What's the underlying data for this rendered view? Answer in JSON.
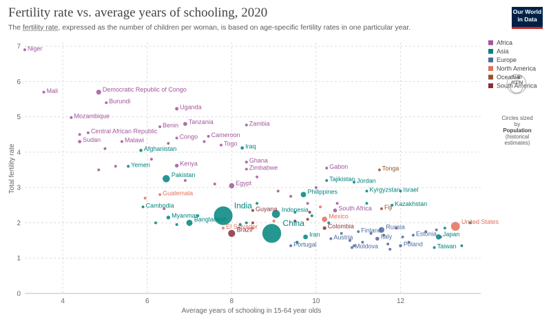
{
  "header": {
    "title": "Fertility rate vs. average years of schooling, 2020",
    "subtitle_link": "fertility rate",
    "subtitle_pre": "The ",
    "subtitle_post": ", expressed as the number of children per woman, is based on age-specific fertility rates in one particular year.",
    "logo_line1": "Our World",
    "logo_line2": "in Data"
  },
  "size_legend": {
    "top_value": "1.4B",
    "mid_value": "600M",
    "note": "Circles sized by",
    "measure": "Population",
    "measure_note": "(historical estimates)"
  },
  "chart_data": {
    "type": "scatter",
    "xlabel": "Average years of schooling in 15-64 year olds",
    "ylabel": "Total fertility rate",
    "xlim": [
      3.1,
      13.9
    ],
    "ylim": [
      0,
      7.1
    ],
    "xticks": [
      4,
      6,
      8,
      10,
      12
    ],
    "yticks": [
      0,
      1,
      2,
      3,
      4,
      5,
      6,
      7
    ],
    "grid": true,
    "legend_position": "right",
    "colors": {
      "Africa": "#a2559c",
      "Asia": "#00847e",
      "Europe": "#4c6a9c",
      "North America": "#e56e5a",
      "Oceania": "#9a5129",
      "South America": "#883039"
    },
    "legend": [
      "Africa",
      "Asia",
      "Europe",
      "North America",
      "Oceania",
      "South America"
    ],
    "points": [
      {
        "label": "Niger",
        "region": "Africa",
        "x": 3.1,
        "y": 6.9,
        "pop": 24
      },
      {
        "label": "Mali",
        "region": "Africa",
        "x": 3.55,
        "y": 5.7,
        "pop": 21
      },
      {
        "label": "Democratic Republic of Congo",
        "region": "Africa",
        "x": 4.85,
        "y": 5.7,
        "pop": 92
      },
      {
        "label": "Burundi",
        "region": "Africa",
        "x": 5.03,
        "y": 5.4,
        "pop": 12
      },
      {
        "label": "Mozambique",
        "region": "Africa",
        "x": 4.2,
        "y": 4.98,
        "pop": 31
      },
      {
        "label": "Uganda",
        "region": "Africa",
        "x": 6.7,
        "y": 5.23,
        "pop": 45
      },
      {
        "label": "Central African Republic",
        "region": "Africa",
        "x": 4.6,
        "y": 4.55,
        "pop": 5
      },
      {
        "label": "Benin",
        "region": "Africa",
        "x": 6.3,
        "y": 4.72,
        "pop": 12
      },
      {
        "label": "Tanzania",
        "region": "Africa",
        "x": 6.9,
        "y": 4.8,
        "pop": 61
      },
      {
        "label": "Zambia",
        "region": "Africa",
        "x": 8.35,
        "y": 4.77,
        "pop": 19
      },
      {
        "label": "Sudan",
        "region": "Africa",
        "x": 4.4,
        "y": 4.3,
        "pop": 44
      },
      {
        "label": "Malawi",
        "region": "Africa",
        "x": 5.4,
        "y": 4.3,
        "pop": 19
      },
      {
        "label": "Congo",
        "region": "Africa",
        "x": 6.7,
        "y": 4.4,
        "pop": 6
      },
      {
        "label": "Cameroon",
        "region": "Africa",
        "x": 7.45,
        "y": 4.45,
        "pop": 27
      },
      {
        "label": "Togo",
        "region": "Africa",
        "x": 7.75,
        "y": 4.2,
        "pop": 8
      },
      {
        "label": "Afghanistan",
        "region": "Asia",
        "x": 5.85,
        "y": 4.05,
        "pop": 39
      },
      {
        "label": "Iraq",
        "region": "Asia",
        "x": 8.25,
        "y": 4.12,
        "pop": 42
      },
      {
        "label": "Ghana",
        "region": "Africa",
        "x": 8.35,
        "y": 3.72,
        "pop": 32
      },
      {
        "label": "Kenya",
        "region": "Africa",
        "x": 6.7,
        "y": 3.62,
        "pop": 53
      },
      {
        "label": "Yemen",
        "region": "Asia",
        "x": 5.55,
        "y": 3.6,
        "pop": 32
      },
      {
        "label": "Zimbabwe",
        "region": "Africa",
        "x": 8.35,
        "y": 3.52,
        "pop": 15
      },
      {
        "label": "Gabon",
        "region": "Africa",
        "x": 10.25,
        "y": 3.55,
        "pop": 2
      },
      {
        "label": "Tonga",
        "region": "Oceania",
        "x": 11.5,
        "y": 3.5,
        "pop": 1
      },
      {
        "label": "Pakistan",
        "region": "Asia",
        "x": 6.45,
        "y": 3.25,
        "pop": 227
      },
      {
        "label": "Tajikistan",
        "region": "Asia",
        "x": 10.25,
        "y": 3.2,
        "pop": 9
      },
      {
        "label": "Jordan",
        "region": "Asia",
        "x": 10.9,
        "y": 3.15,
        "pop": 11
      },
      {
        "label": "Egypt",
        "region": "Africa",
        "x": 8.0,
        "y": 3.05,
        "pop": 107
      },
      {
        "label": "Philippines",
        "region": "Asia",
        "x": 9.7,
        "y": 2.8,
        "pop": 112
      },
      {
        "label": "Kyrgyzstan",
        "region": "Asia",
        "x": 11.2,
        "y": 2.9,
        "pop": 7
      },
      {
        "label": "Israel",
        "region": "Asia",
        "x": 12.0,
        "y": 2.9,
        "pop": 9
      },
      {
        "label": "Guatemala",
        "region": "North America",
        "x": 6.3,
        "y": 2.8,
        "pop": 17
      },
      {
        "label": "Kazakhstan",
        "region": "Asia",
        "x": 11.8,
        "y": 2.5,
        "pop": 19
      },
      {
        "label": "Cambodia",
        "region": "Asia",
        "x": 5.9,
        "y": 2.45,
        "pop": 17
      },
      {
        "label": "Fiji",
        "region": "Oceania",
        "x": 11.55,
        "y": 2.4,
        "pop": 1
      },
      {
        "label": "India",
        "region": "Asia",
        "x": 7.8,
        "y": 2.2,
        "pop": 1396
      },
      {
        "label": "Guyana",
        "region": "South America",
        "x": 8.5,
        "y": 2.35,
        "pop": 1
      },
      {
        "label": "Indonesia",
        "region": "Asia",
        "x": 9.05,
        "y": 2.25,
        "pop": 274
      },
      {
        "label": "South Africa",
        "region": "Africa",
        "x": 10.45,
        "y": 2.35,
        "pop": 59
      },
      {
        "label": "Myanmar",
        "region": "Asia",
        "x": 6.5,
        "y": 2.15,
        "pop": 54
      },
      {
        "label": "Mexico",
        "region": "North America",
        "x": 10.2,
        "y": 2.1,
        "pop": 126
      },
      {
        "label": "Bangladesh",
        "region": "Asia",
        "x": 7.0,
        "y": 2.0,
        "pop": 167
      },
      {
        "label": "United States",
        "region": "North America",
        "x": 13.3,
        "y": 1.9,
        "pop": 335
      },
      {
        "label": "El Salvador",
        "region": "North America",
        "x": 7.8,
        "y": 1.85,
        "pop": 6
      },
      {
        "label": "China",
        "region": "Asia",
        "x": 8.95,
        "y": 1.7,
        "pop": 1424
      },
      {
        "label": "Brazil",
        "region": "South America",
        "x": 8.0,
        "y": 1.7,
        "pop": 213
      },
      {
        "label": "Colombia",
        "region": "South America",
        "x": 10.2,
        "y": 1.85,
        "pop": 51
      },
      {
        "label": "Finland",
        "region": "Europe",
        "x": 11.0,
        "y": 1.75,
        "pop": 6
      },
      {
        "label": "Russia",
        "region": "Europe",
        "x": 11.55,
        "y": 1.8,
        "pop": 145
      },
      {
        "label": "Estonia",
        "region": "Europe",
        "x": 12.3,
        "y": 1.65,
        "pop": 1
      },
      {
        "label": "Iran",
        "region": "Asia",
        "x": 9.75,
        "y": 1.6,
        "pop": 87
      },
      {
        "label": "Austria",
        "region": "Europe",
        "x": 10.35,
        "y": 1.55,
        "pop": 9
      },
      {
        "label": "Italy",
        "region": "Europe",
        "x": 11.45,
        "y": 1.55,
        "pop": 59
      },
      {
        "label": "Japan",
        "region": "Asia",
        "x": 12.9,
        "y": 1.6,
        "pop": 125
      },
      {
        "label": "Portugal",
        "region": "Europe",
        "x": 9.4,
        "y": 1.35,
        "pop": 10
      },
      {
        "label": "Poland",
        "region": "Europe",
        "x": 12.0,
        "y": 1.35,
        "pop": 38
      },
      {
        "label": "Moldova",
        "region": "Europe",
        "x": 10.85,
        "y": 1.3,
        "pop": 3
      },
      {
        "label": "Taiwan",
        "region": "Asia",
        "x": 12.8,
        "y": 1.3,
        "pop": 24
      },
      {
        "label": "",
        "region": "Africa",
        "x": 4.4,
        "y": 4.5,
        "pop": 5
      },
      {
        "label": "",
        "region": "Africa",
        "x": 5.0,
        "y": 4.1,
        "pop": 6
      },
      {
        "label": "",
        "region": "Africa",
        "x": 4.85,
        "y": 3.5,
        "pop": 4
      },
      {
        "label": "",
        "region": "Africa",
        "x": 5.25,
        "y": 3.6,
        "pop": 4
      },
      {
        "label": "",
        "region": "Africa",
        "x": 6.1,
        "y": 3.8,
        "pop": 4
      },
      {
        "label": "",
        "region": "Africa",
        "x": 6.5,
        "y": 4.25,
        "pop": 4
      },
      {
        "label": "",
        "region": "Africa",
        "x": 7.35,
        "y": 4.3,
        "pop": 3
      },
      {
        "label": "",
        "region": "Africa",
        "x": 8.6,
        "y": 3.3,
        "pop": 3
      },
      {
        "label": "",
        "region": "Africa",
        "x": 7.6,
        "y": 3.1,
        "pop": 3
      },
      {
        "label": "",
        "region": "Africa",
        "x": 6.9,
        "y": 3.2,
        "pop": 3
      },
      {
        "label": "",
        "region": "Africa",
        "x": 6.4,
        "y": 2.4,
        "pop": 3
      },
      {
        "label": "",
        "region": "Africa",
        "x": 9.1,
        "y": 2.9,
        "pop": 3
      },
      {
        "label": "",
        "region": "Africa",
        "x": 9.4,
        "y": 2.75,
        "pop": 3
      },
      {
        "label": "",
        "region": "Africa",
        "x": 9.8,
        "y": 2.55,
        "pop": 2
      },
      {
        "label": "",
        "region": "Africa",
        "x": 10.5,
        "y": 2.55,
        "pop": 2
      },
      {
        "label": "",
        "region": "Africa",
        "x": 10.0,
        "y": 3.0,
        "pop": 2
      },
      {
        "label": "",
        "region": "Asia",
        "x": 6.2,
        "y": 2.0,
        "pop": 3
      },
      {
        "label": "",
        "region": "Asia",
        "x": 6.7,
        "y": 1.95,
        "pop": 3
      },
      {
        "label": "",
        "region": "Asia",
        "x": 7.2,
        "y": 2.2,
        "pop": 3
      },
      {
        "label": "",
        "region": "Asia",
        "x": 8.2,
        "y": 1.95,
        "pop": 8
      },
      {
        "label": "",
        "region": "Asia",
        "x": 8.35,
        "y": 2.0,
        "pop": 20
      },
      {
        "label": "",
        "region": "Asia",
        "x": 8.6,
        "y": 2.55,
        "pop": 4
      },
      {
        "label": "",
        "region": "Asia",
        "x": 9.5,
        "y": 2.3,
        "pop": 5
      },
      {
        "label": "",
        "region": "Asia",
        "x": 9.9,
        "y": 2.2,
        "pop": 5
      },
      {
        "label": "",
        "region": "Asia",
        "x": 9.55,
        "y": 1.45,
        "pop": 35
      },
      {
        "label": "",
        "region": "Asia",
        "x": 10.3,
        "y": 2.0,
        "pop": 5
      },
      {
        "label": "",
        "region": "Asia",
        "x": 11.2,
        "y": 2.55,
        "pop": 4
      },
      {
        "label": "",
        "region": "Asia",
        "x": 13.65,
        "y": 2.0,
        "pop": 5
      },
      {
        "label": "",
        "region": "Asia",
        "x": 13.45,
        "y": 1.35,
        "pop": 5
      },
      {
        "label": "",
        "region": "Asia",
        "x": 13.05,
        "y": 1.85,
        "pop": 4
      },
      {
        "label": "",
        "region": "Europe",
        "x": 10.6,
        "y": 1.7,
        "pop": 4
      },
      {
        "label": "",
        "region": "Europe",
        "x": 10.8,
        "y": 1.5,
        "pop": 4
      },
      {
        "label": "",
        "region": "Europe",
        "x": 11.1,
        "y": 1.45,
        "pop": 4
      },
      {
        "label": "",
        "region": "Europe",
        "x": 11.3,
        "y": 1.7,
        "pop": 4
      },
      {
        "label": "",
        "region": "Europe",
        "x": 11.6,
        "y": 1.65,
        "pop": 4
      },
      {
        "label": "",
        "region": "Europe",
        "x": 11.7,
        "y": 1.4,
        "pop": 4
      },
      {
        "label": "",
        "region": "Europe",
        "x": 11.9,
        "y": 1.85,
        "pop": 4
      },
      {
        "label": "",
        "region": "Europe",
        "x": 12.05,
        "y": 1.6,
        "pop": 4
      },
      {
        "label": "",
        "region": "Europe",
        "x": 12.2,
        "y": 1.45,
        "pop": 4
      },
      {
        "label": "",
        "region": "Europe",
        "x": 12.6,
        "y": 1.75,
        "pop": 4
      },
      {
        "label": "",
        "region": "Europe",
        "x": 12.85,
        "y": 1.8,
        "pop": 4
      },
      {
        "label": "",
        "region": "Europe",
        "x": 12.95,
        "y": 1.6,
        "pop": 4
      },
      {
        "label": "",
        "region": "Europe",
        "x": 11.75,
        "y": 1.25,
        "pop": 4
      },
      {
        "label": "",
        "region": "Europe",
        "x": 10.9,
        "y": 1.35,
        "pop": 4
      },
      {
        "label": "",
        "region": "North America",
        "x": 8.5,
        "y": 1.85,
        "pop": 3
      },
      {
        "label": "",
        "region": "North America",
        "x": 9.0,
        "y": 2.05,
        "pop": 3
      },
      {
        "label": "",
        "region": "North America",
        "x": 10.1,
        "y": 2.45,
        "pop": 3
      },
      {
        "label": "",
        "region": "North America",
        "x": 5.95,
        "y": 2.7,
        "pop": 3
      },
      {
        "label": "",
        "region": "South America",
        "x": 8.5,
        "y": 2.0,
        "pop": 3
      },
      {
        "label": "",
        "region": "South America",
        "x": 9.85,
        "y": 2.3,
        "pop": 3
      },
      {
        "label": "",
        "region": "South America",
        "x": 9.8,
        "y": 2.1,
        "pop": 3
      },
      {
        "label": "",
        "region": "South America",
        "x": 9.5,
        "y": 2.05,
        "pop": 3
      }
    ]
  }
}
